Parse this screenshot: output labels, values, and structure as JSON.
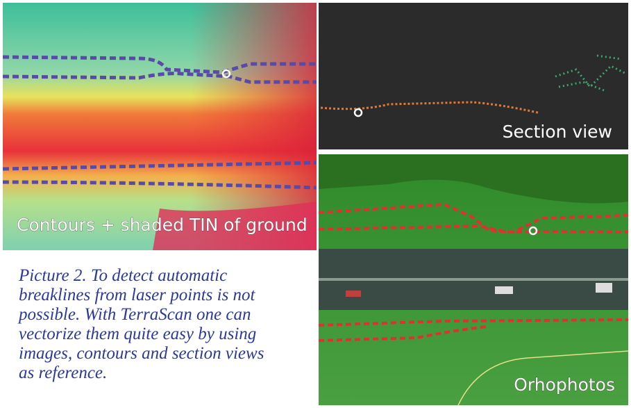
{
  "panels": {
    "contours": {
      "label": "Contours + shaded TIN of ground"
    },
    "section": {
      "label": "Section view"
    },
    "orthophoto": {
      "label": "Orhophotos"
    }
  },
  "caption": {
    "lines": [
      "Picture 2. To detect automatic",
      "breaklines from laser points is not",
      "possible. With TerraScan one can",
      "vectorize them quite easy by using",
      "images, contours and section views",
      "as reference."
    ]
  }
}
